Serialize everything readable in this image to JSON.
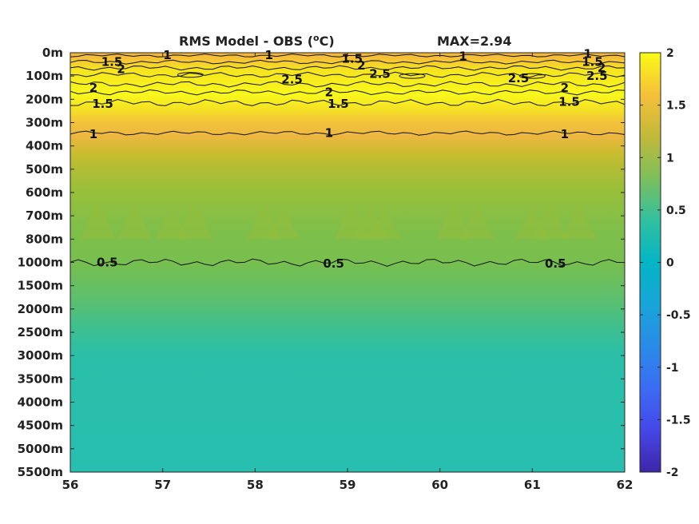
{
  "chart_data": {
    "type": "heatmap",
    "title": "RMS Model - OBS (",
    "title_unit_sup": "o",
    "title_unit": "C)",
    "max_label": "MAX=2.94",
    "x_ticks": [
      "56",
      "57",
      "58",
      "59",
      "60",
      "61",
      "62"
    ],
    "xlim": [
      56,
      62
    ],
    "y_ticks": [
      "0m",
      "100m",
      "200m",
      "300m",
      "400m",
      "500m",
      "600m",
      "700m",
      "800m",
      "1000m",
      "1500m",
      "2000m",
      "2500m",
      "3000m",
      "3500m",
      "4000m",
      "4500m",
      "5000m",
      "5500m"
    ],
    "colorbar": {
      "range": [
        -2,
        2
      ],
      "ticks": [
        "2",
        "1.5",
        "1",
        "0.5",
        "0",
        "-0.5",
        "-1",
        "-1.5",
        "-2"
      ],
      "colormap": "parula"
    },
    "depth_profile": [
      {
        "depth": "0m",
        "value": 1.2
      },
      {
        "depth": "50m",
        "value": 1.8
      },
      {
        "depth": "100m",
        "value": 2.6
      },
      {
        "depth": "200m",
        "value": 1.6
      },
      {
        "depth": "300m",
        "value": 1.2
      },
      {
        "depth": "400m",
        "value": 0.95
      },
      {
        "depth": "500m",
        "value": 0.85
      },
      {
        "depth": "600m",
        "value": 0.78
      },
      {
        "depth": "700m",
        "value": 0.75
      },
      {
        "depth": "800m",
        "value": 0.7
      },
      {
        "depth": "1000m",
        "value": 0.55
      },
      {
        "depth": "1500m",
        "value": 0.4
      },
      {
        "depth": "2000m",
        "value": 0.3
      },
      {
        "depth": "5500m",
        "value": 0.3
      }
    ],
    "contour_labels": [
      {
        "text": "1",
        "x": 57.05,
        "depth_idx": 0.1
      },
      {
        "text": "1",
        "x": 58.15,
        "depth_idx": 0.1
      },
      {
        "text": "1",
        "x": 60.25,
        "depth_idx": 0.15
      },
      {
        "text": "1",
        "x": 61.6,
        "depth_idx": 0.05
      },
      {
        "text": "1.5",
        "x": 56.45,
        "depth_idx": 0.4
      },
      {
        "text": "2",
        "x": 56.55,
        "depth_idx": 0.7
      },
      {
        "text": "1.5",
        "x": 59.05,
        "depth_idx": 0.25
      },
      {
        "text": "2",
        "x": 59.15,
        "depth_idx": 0.55
      },
      {
        "text": "1.5",
        "x": 61.65,
        "depth_idx": 0.4
      },
      {
        "text": "2",
        "x": 61.75,
        "depth_idx": 0.65
      },
      {
        "text": "2.5",
        "x": 59.35,
        "depth_idx": 0.9
      },
      {
        "text": "2.5",
        "x": 58.4,
        "depth_idx": 1.15
      },
      {
        "text": "2.5",
        "x": 60.85,
        "depth_idx": 1.1
      },
      {
        "text": "2.5",
        "x": 61.7,
        "depth_idx": 1.0
      },
      {
        "text": "2",
        "x": 56.25,
        "depth_idx": 1.5
      },
      {
        "text": "2",
        "x": 58.8,
        "depth_idx": 1.7
      },
      {
        "text": "2",
        "x": 61.35,
        "depth_idx": 1.5
      },
      {
        "text": "1.5",
        "x": 56.35,
        "depth_idx": 2.2
      },
      {
        "text": "1.5",
        "x": 58.9,
        "depth_idx": 2.2
      },
      {
        "text": "1.5",
        "x": 61.4,
        "depth_idx": 2.1
      },
      {
        "text": "1",
        "x": 56.25,
        "depth_idx": 3.5
      },
      {
        "text": "1",
        "x": 58.8,
        "depth_idx": 3.45
      },
      {
        "text": "1",
        "x": 61.35,
        "depth_idx": 3.5
      },
      {
        "text": "0.5",
        "x": 56.4,
        "depth_idx": 9.0
      },
      {
        "text": "0.5",
        "x": 58.85,
        "depth_idx": 9.05
      },
      {
        "text": "0.5",
        "x": 61.25,
        "depth_idx": 9.05
      }
    ]
  }
}
